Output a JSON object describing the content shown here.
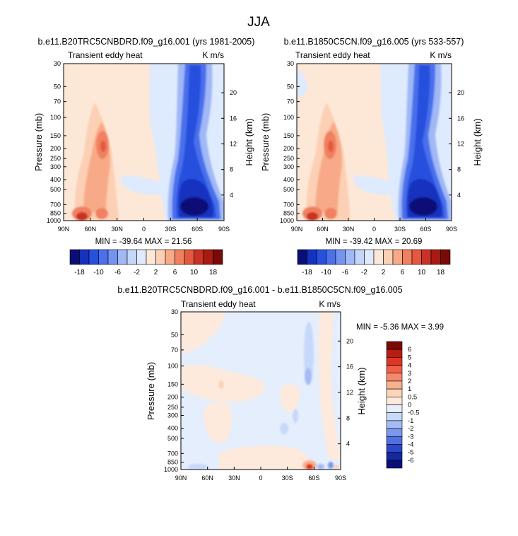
{
  "figure": {
    "title": "JJA"
  },
  "chart_data": [
    {
      "type": "heatmap",
      "title": "b.e11.B20TRC5CNBDRD.f09_g16.001 (yrs 1981-2005)",
      "left_label": "Transient eddy heat",
      "right_label": "K m/s",
      "ylabel": "Pressure (mb)",
      "ylabel_right": "Height (km)",
      "x_ticks": [
        "90N",
        "60N",
        "30N",
        "0",
        "30S",
        "60S",
        "90S"
      ],
      "y_ticks": [
        "30",
        "50",
        "70",
        "100",
        "150",
        "200",
        "250",
        "300",
        "400",
        "500",
        "700",
        "850",
        "1000"
      ],
      "height_ticks": [
        "20",
        "16",
        "12",
        "8",
        "4"
      ],
      "stats": "MIN = -39.64  MAX =  21.56",
      "min": -39.64,
      "max": 21.56,
      "colorbar_labels": [
        "-18",
        "-10",
        "-6",
        "-2",
        "2",
        "6",
        "10",
        "18"
      ]
    },
    {
      "type": "heatmap",
      "title": "b.e11.B1850C5CN.f09_g16.005 (yrs 533-557)",
      "left_label": "Transient eddy heat",
      "right_label": "K m/s",
      "ylabel": "Pressure (mb)",
      "ylabel_right": "Height (km)",
      "x_ticks": [
        "90N",
        "60N",
        "30N",
        "0",
        "30S",
        "60S",
        "90S"
      ],
      "y_ticks": [
        "30",
        "50",
        "70",
        "100",
        "150",
        "200",
        "250",
        "300",
        "400",
        "500",
        "700",
        "850",
        "1000"
      ],
      "height_ticks": [
        "20",
        "16",
        "12",
        "8",
        "4"
      ],
      "stats": "MIN = -39.42  MAX =  20.69",
      "min": -39.42,
      "max": 20.69,
      "colorbar_labels": [
        "-18",
        "-10",
        "-6",
        "-2",
        "2",
        "6",
        "10",
        "18"
      ]
    },
    {
      "type": "heatmap",
      "title": "b.e11.B20TRC5CNBDRD.f09_g16.001 - b.e11.B1850C5CN.f09_g16.005",
      "left_label": "Transient eddy heat",
      "right_label": "K m/s",
      "ylabel": "Pressure (mb)",
      "ylabel_right": "Height (km)",
      "x_ticks": [
        "90N",
        "60N",
        "30N",
        "0",
        "30S",
        "60S",
        "90S"
      ],
      "y_ticks": [
        "30",
        "50",
        "70",
        "100",
        "150",
        "200",
        "250",
        "300",
        "400",
        "500",
        "700",
        "850",
        "1000"
      ],
      "height_ticks": [
        "20",
        "16",
        "12",
        "8",
        "4"
      ],
      "stats": "MIN = -5.36  MAX =   3.99",
      "min": -5.36,
      "max": 3.99,
      "colorbar_labels": [
        "6",
        "5",
        "4",
        "3",
        "2",
        "1",
        "0.5",
        "0",
        "-0.5",
        "-1",
        "-2",
        "-3",
        "-4",
        "-5",
        "-6"
      ]
    }
  ],
  "colors": {
    "top_colorbar": [
      "#0a0f78",
      "#1432be",
      "#2850de",
      "#4a70ec",
      "#7494f2",
      "#a0b8f6",
      "#c4d6fa",
      "#deeafd",
      "#fde8d8",
      "#fcd0b4",
      "#f8aa88",
      "#f08060",
      "#e25840",
      "#c83224",
      "#a81a12",
      "#7a0a06"
    ],
    "diff_colorbar": [
      "#7a0a06",
      "#b81c12",
      "#e03424",
      "#f06048",
      "#f48a6c",
      "#f8b090",
      "#fcd4b8",
      "#fdeadc",
      "#e4eefc",
      "#c8d8fa",
      "#a4bcf4",
      "#7c98ec",
      "#5070e0",
      "#2c48c8",
      "#1428a0",
      "#0a0f78"
    ]
  }
}
